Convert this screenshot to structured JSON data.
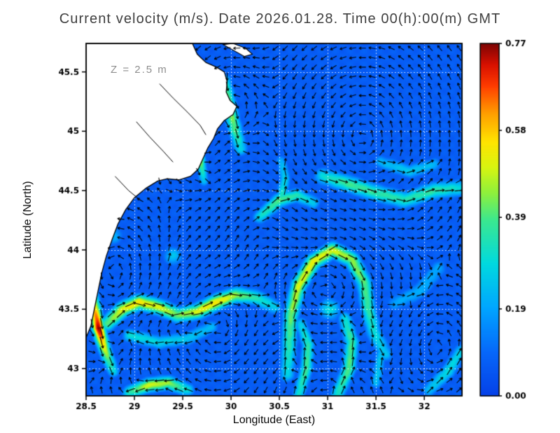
{
  "chart_data": {
    "type": "heatmap",
    "subtype": "vector-field-map",
    "title": "Current velocity (m/s). Date 2026.01.28. Time 00(h):00(m) GMT",
    "xlabel": "Longitude (East)",
    "ylabel": "Latitude (North)",
    "depth_annotation": "Z = 2.5 m",
    "units": "m/s",
    "x_range": [
      28.5,
      32.39
    ],
    "y_range": [
      42.77,
      45.74
    ],
    "x_ticks": {
      "values": [
        28.5,
        29,
        29.5,
        30,
        30.5,
        31,
        31.5,
        32
      ],
      "labels": [
        "28.5",
        "29",
        "29.5",
        "30",
        "30.5",
        "31",
        "31.5",
        "32"
      ]
    },
    "y_ticks": {
      "values": [
        43,
        43.5,
        44,
        44.5,
        45,
        45.5
      ],
      "labels": [
        "43",
        "43.5",
        "44",
        "44.5",
        "45",
        "45.5"
      ]
    },
    "grid": {
      "show": true,
      "color": "#ffffff",
      "style": "dotted",
      "interval": 0.5
    },
    "colorbar": {
      "min": 0,
      "max": 0.77,
      "tick_values": [
        0,
        0.19,
        0.39,
        0.58,
        0.77
      ],
      "tick_labels": [
        "0.00",
        "0.19",
        "0.39",
        "0.58",
        "0.77"
      ],
      "stops": [
        [
          0,
          "#0541e8"
        ],
        [
          0.125,
          "#0668fa"
        ],
        [
          0.25,
          "#00a6ff"
        ],
        [
          0.375,
          "#00d9df"
        ],
        [
          0.5,
          "#3ce88e"
        ],
        [
          0.575,
          "#8ef03c"
        ],
        [
          0.65,
          "#d8f510"
        ],
        [
          0.72,
          "#ffe400"
        ],
        [
          0.8,
          "#ffa000"
        ],
        [
          0.88,
          "#ff3c00"
        ],
        [
          0.94,
          "#d81000"
        ],
        [
          1,
          "#7c0404"
        ]
      ]
    },
    "base_speed": 0.07,
    "streaks": [
      {
        "width": 0.045,
        "pts": [
          [
            28.52,
            43.82,
            0.3
          ],
          [
            28.56,
            43.62,
            0.45
          ],
          [
            28.6,
            43.46,
            0.62
          ],
          [
            28.63,
            43.34,
            0.77
          ],
          [
            28.67,
            43.22,
            0.58
          ],
          [
            28.72,
            43.1,
            0.42
          ],
          [
            28.78,
            42.98,
            0.3
          ]
        ]
      },
      {
        "width": 0.055,
        "pts": [
          [
            28.72,
            43.38,
            0.4
          ],
          [
            28.88,
            43.5,
            0.52
          ],
          [
            29.05,
            43.56,
            0.55
          ],
          [
            29.25,
            43.52,
            0.5
          ],
          [
            29.45,
            43.45,
            0.42
          ],
          [
            29.65,
            43.48,
            0.5
          ],
          [
            29.85,
            43.56,
            0.55
          ],
          [
            30.05,
            43.62,
            0.45
          ],
          [
            30.25,
            43.6,
            0.35
          ],
          [
            30.45,
            43.52,
            0.26
          ]
        ]
      },
      {
        "width": 0.05,
        "pts": [
          [
            29.8,
            43.35,
            0.22
          ],
          [
            29.55,
            43.25,
            0.25
          ],
          [
            29.25,
            43.22,
            0.28
          ],
          [
            28.95,
            43.28,
            0.3
          ]
        ]
      },
      {
        "width": 0.035,
        "pts": [
          [
            29.64,
            44.92,
            0.3
          ],
          [
            29.67,
            44.8,
            0.58
          ],
          [
            29.7,
            44.68,
            0.35
          ],
          [
            29.72,
            44.58,
            0.25
          ]
        ]
      },
      {
        "width": 0.05,
        "pts": [
          [
            29.55,
            42.82,
            0.3
          ],
          [
            29.35,
            42.88,
            0.45
          ],
          [
            29.15,
            42.86,
            0.5
          ],
          [
            28.95,
            42.8,
            0.35
          ]
        ]
      },
      {
        "width": 0.045,
        "pts": [
          [
            30.7,
            42.78,
            0.3
          ],
          [
            30.78,
            43.0,
            0.38
          ],
          [
            30.8,
            43.2,
            0.35
          ],
          [
            30.72,
            43.38,
            0.26
          ]
        ]
      },
      {
        "width": 0.05,
        "pts": [
          [
            31.1,
            42.78,
            0.32
          ],
          [
            31.22,
            43.0,
            0.4
          ],
          [
            31.25,
            43.22,
            0.38
          ],
          [
            31.18,
            43.42,
            0.3
          ]
        ]
      },
      {
        "width": 0.04,
        "pts": [
          [
            31.5,
            42.88,
            0.24
          ],
          [
            31.55,
            43.12,
            0.25
          ]
        ]
      },
      {
        "width": 0.06,
        "pts": [
          [
            30.95,
            44.62,
            0.3
          ],
          [
            31.2,
            44.56,
            0.38
          ],
          [
            31.5,
            44.48,
            0.36
          ],
          [
            31.8,
            44.42,
            0.34
          ],
          [
            32.1,
            44.5,
            0.36
          ],
          [
            32.36,
            44.52,
            0.3
          ]
        ]
      },
      {
        "width": 0.05,
        "pts": [
          [
            31.55,
            44.74,
            0.22
          ],
          [
            31.85,
            44.66,
            0.26
          ],
          [
            32.1,
            44.72,
            0.22
          ]
        ]
      },
      {
        "width": 0.055,
        "pts": [
          [
            30.58,
            42.95,
            0.28
          ],
          [
            30.6,
            43.2,
            0.35
          ],
          [
            30.62,
            43.45,
            0.42
          ],
          [
            30.7,
            43.7,
            0.5
          ],
          [
            30.85,
            43.9,
            0.52
          ],
          [
            31.05,
            44.0,
            0.5
          ],
          [
            31.25,
            43.92,
            0.45
          ],
          [
            31.38,
            43.72,
            0.4
          ],
          [
            31.42,
            43.5,
            0.36
          ],
          [
            31.48,
            43.3,
            0.3
          ],
          [
            31.6,
            43.12,
            0.24
          ]
        ]
      },
      {
        "width": 0.05,
        "pts": [
          [
            30.3,
            44.28,
            0.3
          ],
          [
            30.5,
            44.42,
            0.4
          ],
          [
            30.68,
            44.46,
            0.34
          ],
          [
            30.85,
            44.4,
            0.26
          ]
        ]
      },
      {
        "width": 0.04,
        "pts": [
          [
            30.52,
            44.44,
            0.34
          ],
          [
            30.56,
            44.6,
            0.27
          ],
          [
            30.52,
            44.75,
            0.21
          ]
        ]
      },
      {
        "width": 0.05,
        "pts": [
          [
            29.93,
            45.42,
            0.35
          ],
          [
            29.98,
            45.22,
            0.45
          ],
          [
            30.04,
            45.02,
            0.4
          ],
          [
            30.1,
            44.85,
            0.28
          ]
        ]
      },
      {
        "width": 0.05,
        "pts": [
          [
            32.05,
            42.82,
            0.24
          ],
          [
            32.25,
            42.98,
            0.3
          ],
          [
            32.38,
            43.15,
            0.26
          ]
        ]
      },
      {
        "width": 0.06,
        "pts": [
          [
            31.7,
            43.55,
            0.19
          ],
          [
            31.95,
            43.65,
            0.21
          ],
          [
            32.15,
            43.85,
            0.19
          ]
        ]
      }
    ],
    "blobs": [
      {
        "c": [
          31.02,
          43.5
        ],
        "r": 0.08,
        "peak": 0.3
      },
      {
        "c": [
          29.4,
          43.95
        ],
        "r": 0.07,
        "peak": 0.25
      },
      {
        "c": [
          28.78,
          44.12
        ],
        "r": 0.07,
        "peak": 0.22
      }
    ],
    "eddies": [
      {
        "c": [
          29.85,
          43.32
        ],
        "a": 0.8,
        "s": 0.45
      },
      {
        "c": [
          28.82,
          43.8
        ],
        "a": -0.55,
        "s": 0.32
      },
      {
        "c": [
          31.02,
          43.62
        ],
        "a": 1.0,
        "s": 0.42
      },
      {
        "c": [
          31.35,
          44.95
        ],
        "a": -0.8,
        "s": 0.55
      },
      {
        "c": [
          30.32,
          44.2
        ],
        "a": 0.35,
        "s": 0.3
      },
      {
        "c": [
          30.95,
          42.88
        ],
        "a": -0.6,
        "s": 0.38
      },
      {
        "c": [
          29.7,
          44.85
        ],
        "a": -0.25,
        "s": 0.22
      },
      {
        "c": [
          29.98,
          45.25
        ],
        "a": -0.3,
        "s": 0.25
      },
      {
        "c": [
          32.1,
          43.2
        ],
        "a": -0.35,
        "s": 0.3
      }
    ],
    "background_flow": [
      -0.025,
      -0.008
    ],
    "arrow_grid": {
      "dlon": 0.1,
      "dlat": 0.08,
      "lon0": 28.56,
      "lat0": 42.82
    },
    "coastline": [
      [
        29.6,
        45.74
      ],
      [
        29.65,
        45.65
      ],
      [
        29.74,
        45.58
      ],
      [
        29.85,
        45.54
      ],
      [
        29.93,
        45.5
      ],
      [
        29.96,
        45.42
      ],
      [
        29.95,
        45.33
      ],
      [
        29.99,
        45.26
      ],
      [
        30.06,
        45.21
      ],
      [
        30.02,
        45.14
      ],
      [
        29.93,
        45.09
      ],
      [
        29.86,
        45.02
      ],
      [
        29.82,
        44.94
      ],
      [
        29.76,
        44.86
      ],
      [
        29.71,
        44.77
      ],
      [
        29.66,
        44.68
      ],
      [
        29.58,
        44.62
      ],
      [
        29.46,
        44.59
      ],
      [
        29.34,
        44.6
      ],
      [
        29.24,
        44.58
      ],
      [
        29.12,
        44.52
      ],
      [
        29.0,
        44.44
      ],
      [
        28.91,
        44.34
      ],
      [
        28.83,
        44.22
      ],
      [
        28.77,
        44.09
      ],
      [
        28.71,
        43.95
      ],
      [
        28.66,
        43.8
      ],
      [
        28.62,
        43.64
      ],
      [
        28.58,
        43.48
      ],
      [
        28.55,
        43.36
      ],
      [
        28.52,
        43.3
      ],
      [
        28.5,
        43.26
      ]
    ],
    "lagoons": [
      [
        [
          29.26,
          45.4
        ],
        [
          29.4,
          45.28
        ],
        [
          29.55,
          45.16
        ],
        [
          29.68,
          45.05
        ],
        [
          29.74,
          44.97
        ]
      ],
      [
        [
          29.02,
          45.08
        ],
        [
          29.16,
          44.95
        ],
        [
          29.3,
          44.83
        ],
        [
          29.4,
          44.74
        ]
      ],
      [
        [
          28.8,
          44.62
        ],
        [
          28.94,
          44.5
        ],
        [
          29.06,
          44.42
        ]
      ]
    ],
    "islands": [
      [
        [
          29.92,
          45.73
        ],
        [
          30.03,
          45.68
        ],
        [
          30.14,
          45.63
        ],
        [
          30.22,
          45.65
        ],
        [
          30.15,
          45.7
        ],
        [
          30.02,
          45.74
        ]
      ]
    ]
  }
}
